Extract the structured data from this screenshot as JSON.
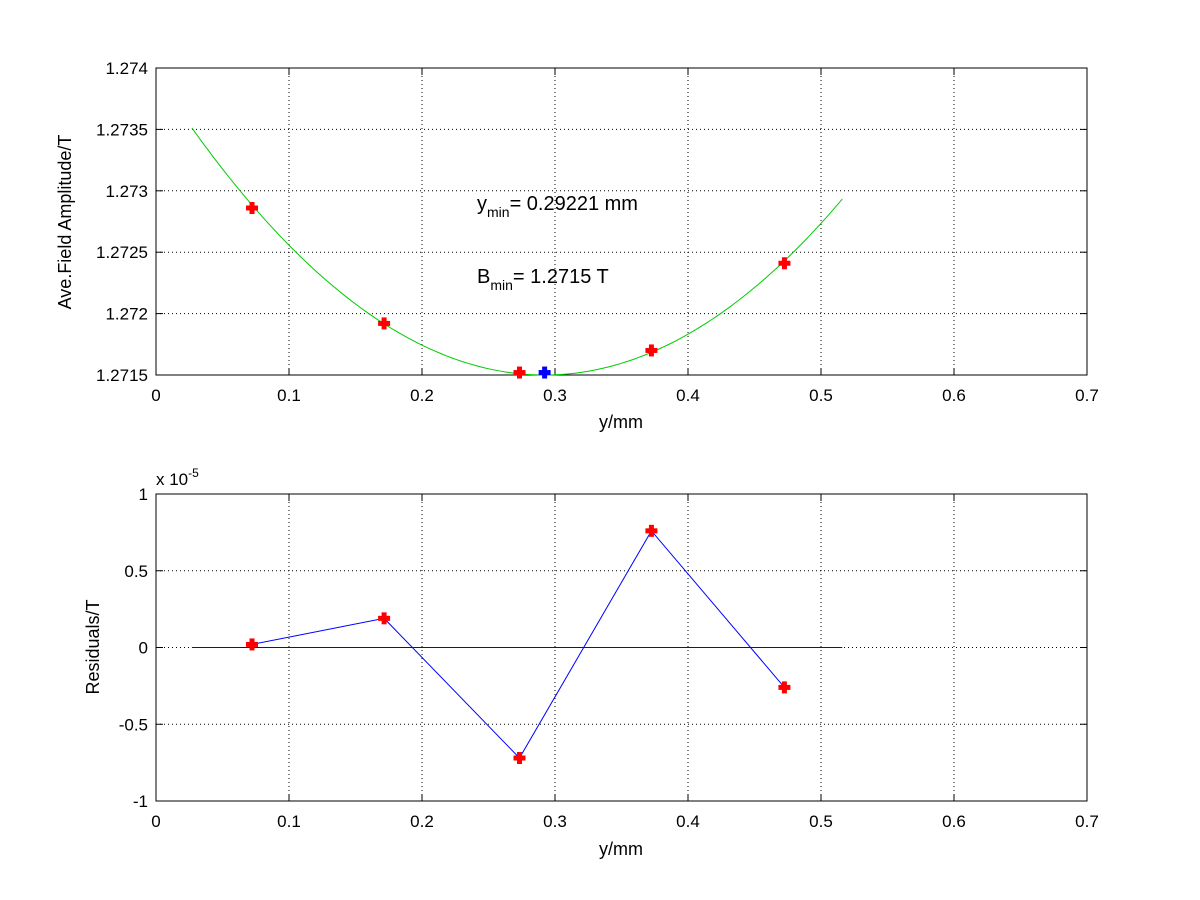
{
  "chart_data": [
    {
      "type": "line",
      "xlabel": "y/mm",
      "ylabel": "Ave.Field Amplitude/T",
      "xlim": [
        0,
        0.7
      ],
      "ylim": [
        1.2715,
        1.274
      ],
      "grid": true,
      "xticks": [
        "0",
        "0.1",
        "0.2",
        "0.3",
        "0.4",
        "0.5",
        "0.6",
        "0.7"
      ],
      "yticks": [
        "1.2715",
        "1.272",
        "1.2725",
        "1.273",
        "1.2735",
        "1.274"
      ],
      "fit_curve": {
        "color": "#00cc00",
        "x_range": [
          0.027,
          0.516
        ],
        "vertex": [
          0.29221,
          1.2715
        ],
        "a": 0.0286
      },
      "series": [
        {
          "marker": "plus",
          "color": "#ff0000",
          "x": [
            0.0722,
            0.1715,
            0.2733,
            0.3725,
            0.4725
          ],
          "y": [
            1.27286,
            1.27192,
            1.27152,
            1.2717,
            1.27241
          ]
        },
        {
          "marker": "plus",
          "color": "#0000ff",
          "x": [
            0.2922
          ],
          "y": [
            1.27152
          ]
        }
      ],
      "annotations": [
        {
          "main": "y",
          "sub": "min",
          "rest": "= 0.29221 mm"
        },
        {
          "main": "B",
          "sub": "min",
          "rest": "= 1.2715 T"
        }
      ]
    },
    {
      "type": "line",
      "xlabel": "y/mm",
      "ylabel": "Residuals/T",
      "xlim": [
        0,
        0.7
      ],
      "ylim": [
        -1,
        1
      ],
      "grid": true,
      "scale_prefix": "x 10",
      "scale_exponent": "-5",
      "xticks": [
        "0",
        "0.1",
        "0.2",
        "0.3",
        "0.4",
        "0.5",
        "0.6",
        "0.7"
      ],
      "yticks": [
        "-1",
        "-0.5",
        "0",
        "0.5",
        "1"
      ],
      "zero_line": {
        "color": "#0000ff",
        "x_range": [
          0.027,
          0.516
        ],
        "y": 0
      },
      "series": [
        {
          "marker": "plus",
          "color": "#ff0000",
          "line_color": "#0000ff",
          "x": [
            0.0722,
            0.1715,
            0.2733,
            0.3725,
            0.4725
          ],
          "y": [
            0.02,
            0.19,
            -0.72,
            0.76,
            -0.26
          ]
        }
      ]
    }
  ]
}
